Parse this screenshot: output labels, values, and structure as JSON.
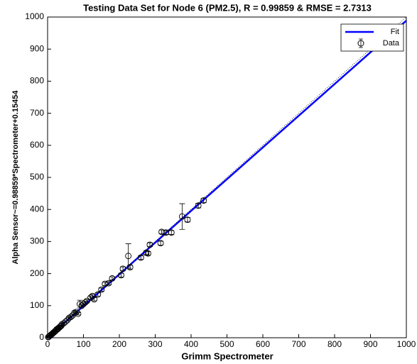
{
  "chart_data": {
    "type": "scatter",
    "title": "Testing Data Set for Node 6 (PM2.5), R = 0.99859 & RMSE = 2.7313",
    "xlabel": "Grimm Spectrometer",
    "ylabel": "Alpha Sensor~=0.98859*Spectrometer+0.15454",
    "xlim": [
      0,
      1000
    ],
    "ylim": [
      0,
      1000
    ],
    "xticks": [
      0,
      100,
      200,
      300,
      400,
      500,
      600,
      700,
      800,
      900,
      1000
    ],
    "yticks": [
      0,
      100,
      200,
      300,
      400,
      500,
      600,
      700,
      800,
      900,
      1000
    ],
    "legend": "upper right",
    "series": [
      {
        "name": "Fit",
        "color": "#0000ff",
        "style": "line",
        "x": [
          0,
          1000
        ],
        "values": [
          0.15454,
          988.74454
        ]
      },
      {
        "color": "#000000",
        "style": "dotted",
        "x": [
          0,
          1000
        ],
        "values": [
          0,
          1000
        ]
      },
      {
        "name": "Data",
        "color": "#000000",
        "style": "errorbar",
        "x": [
          2,
          3,
          5,
          8,
          10,
          13,
          15,
          18,
          20,
          23,
          25,
          28,
          30,
          33,
          35,
          38,
          40,
          45,
          50,
          55,
          60,
          65,
          70,
          75,
          80,
          85,
          90,
          95,
          100,
          105,
          110,
          120,
          125,
          130,
          140,
          150,
          160,
          170,
          180,
          205,
          210,
          225,
          230,
          260,
          275,
          280,
          285,
          315,
          318,
          330,
          345,
          375,
          390,
          420,
          435
        ],
        "values": [
          2,
          3,
          5,
          7,
          10,
          12,
          15,
          17,
          20,
          22,
          26,
          27,
          30,
          32,
          35,
          37,
          42,
          45,
          50,
          55,
          62,
          65,
          70,
          78,
          80,
          75,
          105,
          100,
          105,
          110,
          115,
          125,
          130,
          120,
          135,
          150,
          168,
          170,
          185,
          195,
          215,
          255,
          220,
          250,
          265,
          263,
          290,
          295,
          330,
          328,
          328,
          378,
          368,
          412,
          428
        ],
        "errors": [
          1,
          1,
          1,
          1,
          2,
          2,
          2,
          2,
          2,
          2,
          2,
          2,
          2,
          2,
          2,
          2,
          3,
          3,
          3,
          3,
          3,
          3,
          3,
          4,
          4,
          4,
          12,
          4,
          4,
          4,
          4,
          5,
          5,
          5,
          5,
          5,
          5,
          5,
          5,
          6,
          6,
          38,
          6,
          6,
          6,
          6,
          6,
          6,
          6,
          6,
          6,
          40,
          7,
          7,
          7
        ]
      }
    ]
  }
}
